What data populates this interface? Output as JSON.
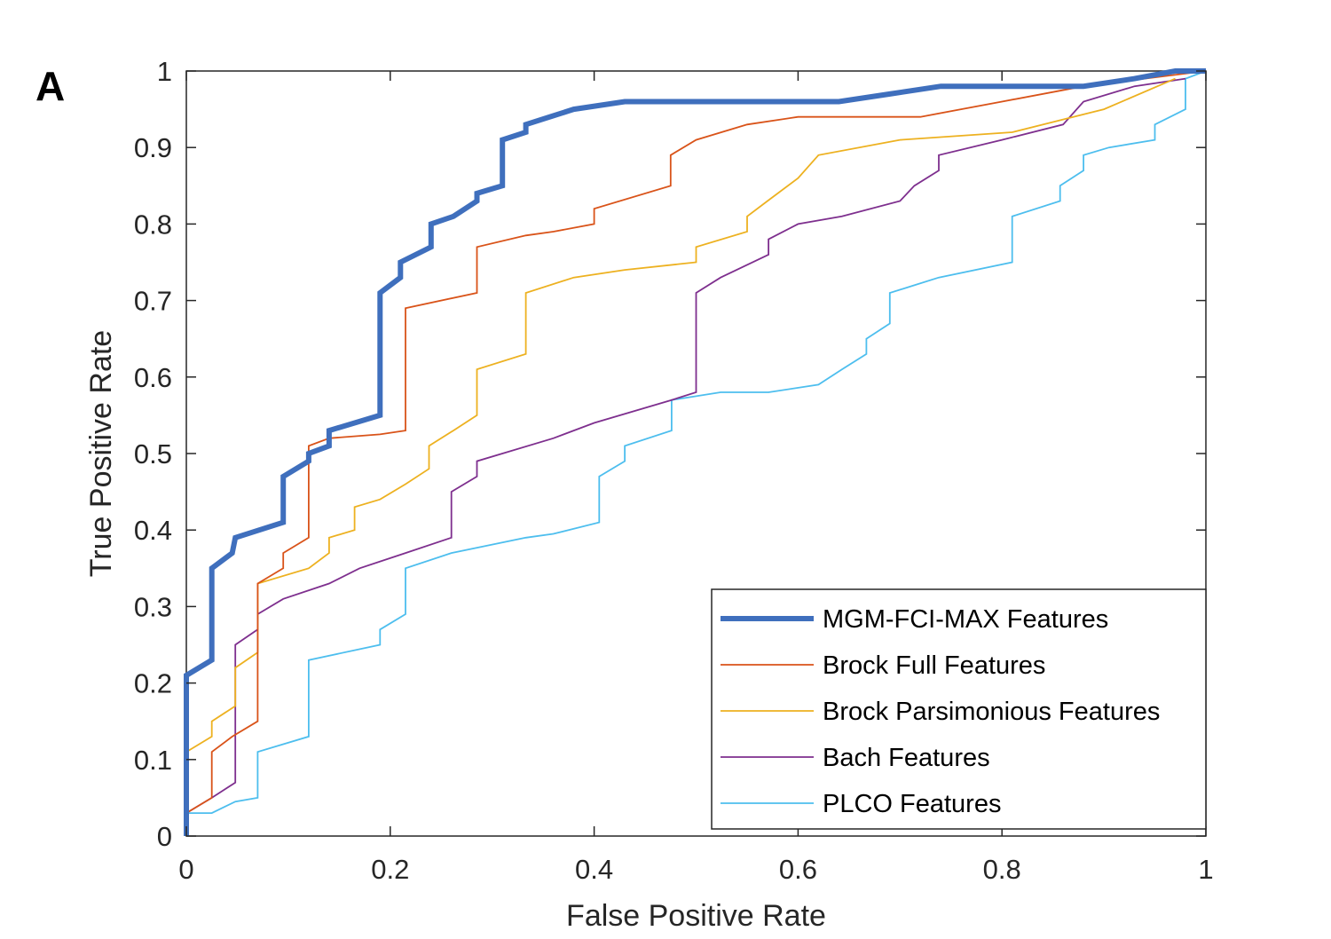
{
  "panel_label": "A",
  "chart_data": {
    "type": "line",
    "title": "",
    "xlabel": "False Positive Rate",
    "ylabel": "True Positive Rate",
    "xlim": [
      0,
      1
    ],
    "ylim": [
      0,
      1
    ],
    "xticks": [
      0,
      0.2,
      0.4,
      0.6,
      0.8,
      1
    ],
    "xtick_labels": [
      "0",
      "0.2",
      "0.4",
      "0.6",
      "0.8",
      "1"
    ],
    "yticks": [
      0,
      0.1,
      0.2,
      0.3,
      0.4,
      0.5,
      0.6,
      0.7,
      0.8,
      0.9,
      1
    ],
    "ytick_labels": [
      "0",
      "0.1",
      "0.2",
      "0.3",
      "0.4",
      "0.5",
      "0.6",
      "0.7",
      "0.8",
      "0.9",
      "1"
    ],
    "grid": false,
    "legend_position": "bottom-right",
    "series": [
      {
        "name": "MGM-FCI-MAX Features",
        "color": "#3f6fbd",
        "weight": "bold",
        "points": [
          [
            0,
            0
          ],
          [
            0,
            0.21
          ],
          [
            0.025,
            0.23
          ],
          [
            0.025,
            0.35
          ],
          [
            0.045,
            0.37
          ],
          [
            0.048,
            0.39
          ],
          [
            0.095,
            0.41
          ],
          [
            0.095,
            0.47
          ],
          [
            0.12,
            0.49
          ],
          [
            0.12,
            0.5
          ],
          [
            0.14,
            0.51
          ],
          [
            0.14,
            0.53
          ],
          [
            0.19,
            0.55
          ],
          [
            0.19,
            0.71
          ],
          [
            0.21,
            0.73
          ],
          [
            0.21,
            0.75
          ],
          [
            0.24,
            0.77
          ],
          [
            0.24,
            0.8
          ],
          [
            0.262,
            0.81
          ],
          [
            0.285,
            0.83
          ],
          [
            0.285,
            0.84
          ],
          [
            0.31,
            0.85
          ],
          [
            0.31,
            0.91
          ],
          [
            0.333,
            0.92
          ],
          [
            0.333,
            0.93
          ],
          [
            0.38,
            0.95
          ],
          [
            0.43,
            0.96
          ],
          [
            0.64,
            0.96
          ],
          [
            0.69,
            0.97
          ],
          [
            0.74,
            0.98
          ],
          [
            0.88,
            0.98
          ],
          [
            0.93,
            0.99
          ],
          [
            0.97,
            1.0
          ],
          [
            1.0,
            1.0
          ]
        ]
      },
      {
        "name": "Brock Full Features",
        "color": "#d95319",
        "weight": "thin",
        "points": [
          [
            0,
            0
          ],
          [
            0,
            0.03
          ],
          [
            0.025,
            0.05
          ],
          [
            0.025,
            0.11
          ],
          [
            0.045,
            0.13
          ],
          [
            0.07,
            0.15
          ],
          [
            0.07,
            0.33
          ],
          [
            0.095,
            0.35
          ],
          [
            0.095,
            0.37
          ],
          [
            0.12,
            0.39
          ],
          [
            0.12,
            0.51
          ],
          [
            0.14,
            0.52
          ],
          [
            0.19,
            0.525
          ],
          [
            0.215,
            0.53
          ],
          [
            0.215,
            0.69
          ],
          [
            0.285,
            0.71
          ],
          [
            0.285,
            0.77
          ],
          [
            0.333,
            0.785
          ],
          [
            0.36,
            0.79
          ],
          [
            0.4,
            0.8
          ],
          [
            0.4,
            0.82
          ],
          [
            0.475,
            0.85
          ],
          [
            0.475,
            0.89
          ],
          [
            0.5,
            0.91
          ],
          [
            0.55,
            0.93
          ],
          [
            0.6,
            0.94
          ],
          [
            0.72,
            0.94
          ],
          [
            0.8,
            0.96
          ],
          [
            0.88,
            0.98
          ],
          [
            1.0,
            1.0
          ]
        ]
      },
      {
        "name": "Brock Parsimonious Features",
        "color": "#edb120",
        "weight": "thin",
        "points": [
          [
            0,
            0
          ],
          [
            0,
            0.11
          ],
          [
            0.025,
            0.13
          ],
          [
            0.025,
            0.15
          ],
          [
            0.048,
            0.17
          ],
          [
            0.048,
            0.22
          ],
          [
            0.07,
            0.24
          ],
          [
            0.07,
            0.33
          ],
          [
            0.12,
            0.35
          ],
          [
            0.14,
            0.37
          ],
          [
            0.14,
            0.39
          ],
          [
            0.165,
            0.4
          ],
          [
            0.165,
            0.43
          ],
          [
            0.19,
            0.44
          ],
          [
            0.215,
            0.46
          ],
          [
            0.238,
            0.48
          ],
          [
            0.238,
            0.51
          ],
          [
            0.262,
            0.53
          ],
          [
            0.285,
            0.55
          ],
          [
            0.285,
            0.61
          ],
          [
            0.333,
            0.63
          ],
          [
            0.333,
            0.71
          ],
          [
            0.38,
            0.73
          ],
          [
            0.43,
            0.74
          ],
          [
            0.5,
            0.75
          ],
          [
            0.5,
            0.77
          ],
          [
            0.55,
            0.79
          ],
          [
            0.55,
            0.81
          ],
          [
            0.57,
            0.83
          ],
          [
            0.6,
            0.86
          ],
          [
            0.62,
            0.89
          ],
          [
            0.7,
            0.91
          ],
          [
            0.81,
            0.92
          ],
          [
            0.9,
            0.95
          ],
          [
            0.97,
            0.99
          ]
        ]
      },
      {
        "name": "Bach Features",
        "color": "#7e2f8e",
        "weight": "thin",
        "points": [
          [
            0,
            0
          ],
          [
            0,
            0.03
          ],
          [
            0.025,
            0.05
          ],
          [
            0.048,
            0.07
          ],
          [
            0.048,
            0.25
          ],
          [
            0.07,
            0.27
          ],
          [
            0.07,
            0.29
          ],
          [
            0.095,
            0.31
          ],
          [
            0.14,
            0.33
          ],
          [
            0.17,
            0.35
          ],
          [
            0.215,
            0.37
          ],
          [
            0.26,
            0.39
          ],
          [
            0.26,
            0.45
          ],
          [
            0.285,
            0.47
          ],
          [
            0.285,
            0.49
          ],
          [
            0.36,
            0.52
          ],
          [
            0.4,
            0.54
          ],
          [
            0.476,
            0.57
          ],
          [
            0.5,
            0.58
          ],
          [
            0.5,
            0.71
          ],
          [
            0.524,
            0.73
          ],
          [
            0.571,
            0.76
          ],
          [
            0.571,
            0.78
          ],
          [
            0.6,
            0.8
          ],
          [
            0.643,
            0.81
          ],
          [
            0.7,
            0.83
          ],
          [
            0.714,
            0.85
          ],
          [
            0.738,
            0.87
          ],
          [
            0.738,
            0.89
          ],
          [
            0.8,
            0.91
          ],
          [
            0.86,
            0.93
          ],
          [
            0.88,
            0.96
          ],
          [
            0.93,
            0.98
          ],
          [
            0.98,
            0.99
          ]
        ]
      },
      {
        "name": "PLCO Features",
        "color": "#4dbeee",
        "weight": "thin",
        "points": [
          [
            0,
            0
          ],
          [
            0,
            0.03
          ],
          [
            0.025,
            0.03
          ],
          [
            0.048,
            0.045
          ],
          [
            0.07,
            0.05
          ],
          [
            0.07,
            0.11
          ],
          [
            0.12,
            0.13
          ],
          [
            0.12,
            0.23
          ],
          [
            0.19,
            0.25
          ],
          [
            0.19,
            0.27
          ],
          [
            0.215,
            0.29
          ],
          [
            0.215,
            0.35
          ],
          [
            0.26,
            0.37
          ],
          [
            0.333,
            0.39
          ],
          [
            0.36,
            0.395
          ],
          [
            0.405,
            0.41
          ],
          [
            0.405,
            0.47
          ],
          [
            0.43,
            0.49
          ],
          [
            0.43,
            0.51
          ],
          [
            0.476,
            0.53
          ],
          [
            0.476,
            0.57
          ],
          [
            0.5,
            0.575
          ],
          [
            0.524,
            0.58
          ],
          [
            0.571,
            0.58
          ],
          [
            0.62,
            0.59
          ],
          [
            0.643,
            0.61
          ],
          [
            0.667,
            0.63
          ],
          [
            0.667,
            0.65
          ],
          [
            0.69,
            0.67
          ],
          [
            0.69,
            0.71
          ],
          [
            0.714,
            0.72
          ],
          [
            0.738,
            0.73
          ],
          [
            0.81,
            0.75
          ],
          [
            0.81,
            0.81
          ],
          [
            0.857,
            0.83
          ],
          [
            0.857,
            0.85
          ],
          [
            0.88,
            0.87
          ],
          [
            0.88,
            0.89
          ],
          [
            0.905,
            0.9
          ],
          [
            0.95,
            0.91
          ],
          [
            0.95,
            0.93
          ],
          [
            0.98,
            0.95
          ],
          [
            0.98,
            0.99
          ],
          [
            1.0,
            1.0
          ]
        ]
      }
    ]
  }
}
